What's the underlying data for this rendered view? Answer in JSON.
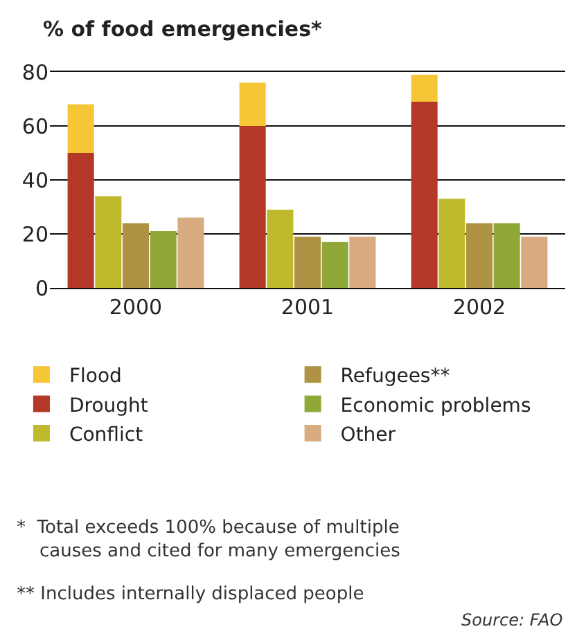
{
  "chart_data": {
    "type": "bar",
    "ylabel": "% of food emergencies*",
    "categories": [
      "2000",
      "2001",
      "2002"
    ],
    "series": [
      {
        "name": "Flood",
        "color": "#f5c636",
        "values": [
          18,
          16,
          10
        ],
        "base": [
          50,
          60,
          69
        ]
      },
      {
        "name": "Drought",
        "color": "#b33828",
        "values": [
          50,
          60,
          69
        ]
      },
      {
        "name": "Conflict",
        "color": "#bfba2d",
        "values": [
          34,
          29,
          33
        ]
      },
      {
        "name": "Refugees**",
        "color": "#b09245",
        "values": [
          24,
          19,
          24
        ]
      },
      {
        "name": "Economic problems",
        "color": "#8fa838",
        "values": [
          21,
          17,
          24
        ]
      },
      {
        "name": "Other",
        "color": "#d9ab80",
        "values": [
          26,
          19,
          19
        ]
      }
    ],
    "ylim": [
      0,
      80
    ],
    "yticks": [
      0,
      20,
      40,
      60,
      80
    ],
    "grid": "y",
    "legend": "bottom",
    "annotations": [
      "*  Total exceeds 100% because of multiple\n    causes and cited for many emergencies",
      "** Includes internally displaced people",
      "Source: FAO"
    ]
  }
}
